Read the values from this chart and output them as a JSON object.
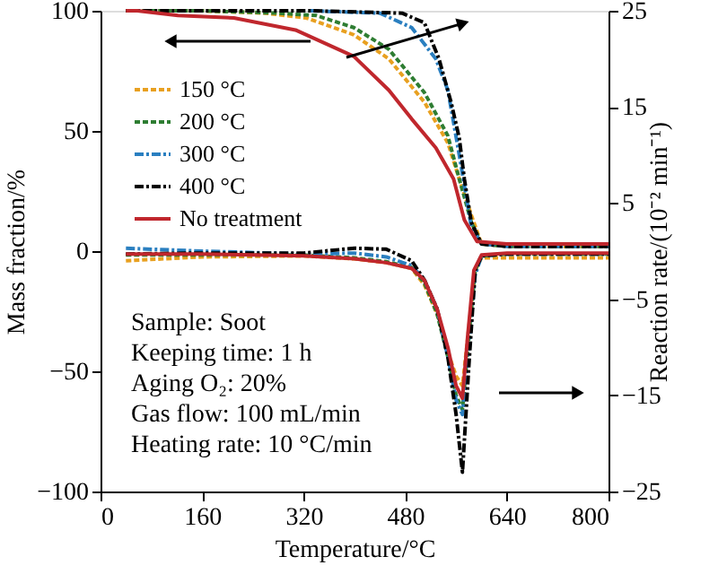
{
  "chart_data": {
    "type": "line",
    "xlabel": "Temperature/°C",
    "ylabel": "Mass fraction/%",
    "y2label": "Reaction rate/(10⁻² min⁻¹)",
    "xlim": [
      0,
      800
    ],
    "xticks": [
      0,
      160,
      320,
      480,
      640,
      800
    ],
    "ylim": [
      -100,
      100
    ],
    "yticks": [
      -100,
      -50,
      0,
      50,
      100
    ],
    "y2lim": [
      -25,
      25
    ],
    "y2ticks": [
      -25,
      -15,
      -5,
      5,
      15,
      25
    ],
    "grid": false,
    "legend": "top left",
    "marker": "none",
    "annotations": [
      "Sample: Soot",
      "Keeping time: 1 h",
      "Aging O₂: 20%",
      "Gas flow: 100 mL/min",
      "Heating rate: 10 °C/min"
    ],
    "series": [
      {
        "name": "150 °C",
        "color": "#e8a020",
        "line_style": "dashed",
        "x": [
          40,
          160,
          260,
          324,
          399,
          454,
          510,
          547,
          565,
          584,
          600,
          640,
          800
        ],
        "values": [
          100,
          100,
          99,
          97,
          90,
          80,
          62,
          45,
          30,
          15,
          3,
          2,
          2
        ]
      },
      {
        "name": "200 °C",
        "color": "#2e7d32",
        "line_style": "dashed",
        "x": [
          40,
          160,
          280,
          340,
          399,
          454,
          510,
          547,
          565,
          584,
          600,
          640,
          800
        ],
        "values": [
          100,
          100,
          99,
          98,
          93,
          84,
          66,
          48,
          30,
          12,
          3,
          2,
          2
        ]
      },
      {
        "name": "300 °C",
        "color": "#2a7fc0",
        "line_style": "dashdot",
        "x": [
          330,
          440,
          490,
          528,
          547,
          565,
          584,
          600,
          640,
          800
        ],
        "values": [
          100,
          99,
          93,
          80,
          67,
          40,
          10,
          3,
          2,
          2
        ]
      },
      {
        "name": "400 °C",
        "color": "#000000",
        "line_style": "dashdot",
        "x": [
          40,
          160,
          330,
          475,
          510,
          533,
          552,
          565,
          573,
          584,
          600,
          640,
          800
        ],
        "values": [
          100,
          100,
          100,
          99,
          95,
          80,
          62,
          47,
          30,
          12,
          3,
          2,
          2
        ]
      },
      {
        "name": "No treatment",
        "color": "#c0272d",
        "line_style": "solid",
        "x": [
          40,
          58,
          122,
          210,
          307,
          399,
          454,
          490,
          528,
          556,
          573,
          593,
          640,
          800
        ],
        "values": [
          100,
          100,
          98,
          97,
          92,
          81,
          67,
          55,
          43,
          30,
          13,
          4,
          3,
          3
        ]
      },
      {
        "color": "#e8a020",
        "line_style": "dashed",
        "axis": "y2",
        "x": [
          40,
          160,
          320,
          400,
          450,
          490,
          510,
          530,
          547,
          560,
          570,
          580,
          590,
          600,
          640,
          800
        ],
        "values": [
          -1,
          -0.6,
          -0.5,
          -0.8,
          -1.2,
          -1.8,
          -3.5,
          -6.5,
          -10.5,
          -13,
          -14,
          -8,
          -2,
          -0.7,
          -0.7,
          -0.7
        ]
      },
      {
        "color": "#2e7d32",
        "line_style": "dashed",
        "axis": "y2",
        "x": [
          40,
          160,
          320,
          400,
          450,
          490,
          510,
          530,
          547,
          560,
          570,
          580,
          590,
          600,
          640,
          800
        ],
        "values": [
          -0.4,
          -0.4,
          -0.4,
          -0.7,
          -1.1,
          -1.7,
          -3.3,
          -6.5,
          -11,
          -15,
          -16.5,
          -9,
          -2,
          -0.5,
          -0.3,
          -0.3
        ]
      },
      {
        "color": "#2a7fc0",
        "line_style": "dashdot",
        "axis": "y2",
        "x": [
          40,
          160,
          320,
          400,
          450,
          490,
          510,
          530,
          547,
          560,
          570,
          580,
          590,
          600,
          640,
          800
        ],
        "values": [
          0.3,
          0,
          -0.3,
          -0.2,
          -0.6,
          -1.5,
          -3,
          -6,
          -11,
          -15.5,
          -17,
          -10,
          -2.5,
          -0.5,
          -0.3,
          -0.3
        ]
      },
      {
        "color": "#000000",
        "line_style": "dashdot",
        "axis": "y2",
        "x": [
          40,
          160,
          320,
          400,
          450,
          490,
          510,
          530,
          547,
          560,
          570,
          580,
          590,
          600,
          640,
          800
        ],
        "values": [
          -0.3,
          -0.2,
          -0.2,
          0.3,
          0.2,
          -1,
          -3,
          -6,
          -11,
          -17,
          -23,
          -12,
          -2,
          -0.5,
          -0.3,
          -0.3
        ]
      },
      {
        "color": "#c0272d",
        "line_style": "solid",
        "axis": "y2",
        "x": [
          40,
          160,
          320,
          400,
          450,
          490,
          510,
          530,
          547,
          560,
          570,
          578,
          588,
          600,
          640,
          800
        ],
        "values": [
          -0.3,
          -0.3,
          -0.5,
          -0.8,
          -1.2,
          -1.8,
          -3,
          -6,
          -10,
          -14,
          -15.3,
          -9,
          -2,
          -0.4,
          -0.2,
          -0.2
        ]
      }
    ]
  }
}
